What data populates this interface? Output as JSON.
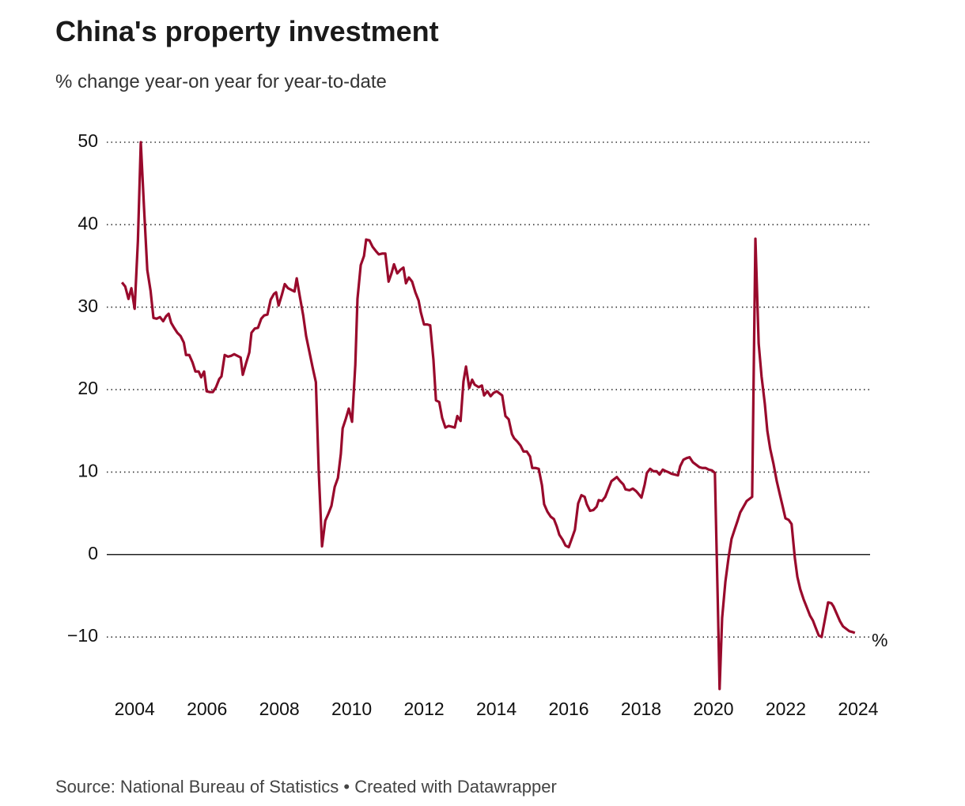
{
  "chart_data": {
    "type": "line",
    "title": "China's property investment",
    "subtitle": "% change year-on year for year-to-date",
    "source": "Source: National Bureau of Statistics • Created with Datawrapper",
    "unit": "%",
    "x": [
      2003.65,
      2003.74,
      2003.83,
      2003.91,
      2004.0,
      2004.09,
      2004.17,
      2004.26,
      2004.35,
      2004.44,
      2004.52,
      2004.61,
      2004.7,
      2004.79,
      2004.87,
      2004.94,
      2005.01,
      2005.09,
      2005.18,
      2005.27,
      2005.36,
      2005.42,
      2005.51,
      2005.6,
      2005.68,
      2005.77,
      2005.84,
      2005.92,
      2005.99,
      2006.08,
      2006.16,
      2006.25,
      2006.34,
      2006.4,
      2006.49,
      2006.58,
      2006.67,
      2006.75,
      2006.84,
      2006.93,
      2006.99,
      2007.08,
      2007.17,
      2007.23,
      2007.32,
      2007.41,
      2007.5,
      2007.58,
      2007.67,
      2007.76,
      2007.85,
      2007.91,
      2007.98,
      2008.07,
      2008.15,
      2008.24,
      2008.33,
      2008.42,
      2008.48,
      2008.57,
      2008.66,
      2008.74,
      2008.83,
      2008.92,
      2009.01,
      2009.09,
      2009.18,
      2009.27,
      2009.36,
      2009.44,
      2009.53,
      2009.62,
      2009.7,
      2009.75,
      2009.84,
      2009.92,
      2010.01,
      2010.1,
      2010.16,
      2010.25,
      2010.34,
      2010.4,
      2010.49,
      2010.58,
      2010.67,
      2010.75,
      2010.84,
      2010.93,
      2011.02,
      2011.1,
      2011.17,
      2011.26,
      2011.34,
      2011.43,
      2011.5,
      2011.58,
      2011.67,
      2011.76,
      2011.85,
      2011.91,
      2012.0,
      2012.09,
      2012.17,
      2012.26,
      2012.33,
      2012.42,
      2012.5,
      2012.59,
      2012.68,
      2012.77,
      2012.85,
      2012.92,
      2013.01,
      2013.09,
      2013.16,
      2013.25,
      2013.33,
      2013.4,
      2013.51,
      2013.6,
      2013.66,
      2013.75,
      2013.84,
      2013.92,
      2014.01,
      2014.1,
      2014.16,
      2014.25,
      2014.34,
      2014.43,
      2014.49,
      2014.58,
      2014.67,
      2014.75,
      2014.84,
      2014.93,
      2014.99,
      2015.08,
      2015.17,
      2015.26,
      2015.32,
      2015.41,
      2015.5,
      2015.59,
      2015.67,
      2015.74,
      2015.83,
      2015.91,
      2016.0,
      2016.09,
      2016.17,
      2016.26,
      2016.35,
      2016.44,
      2016.5,
      2016.59,
      2016.68,
      2016.77,
      2016.83,
      2016.92,
      2017.01,
      2017.09,
      2017.18,
      2017.27,
      2017.33,
      2017.42,
      2017.51,
      2017.57,
      2017.68,
      2017.77,
      2017.86,
      2017.92,
      2018.01,
      2018.1,
      2018.16,
      2018.25,
      2018.34,
      2018.43,
      2018.51,
      2018.6,
      2018.69,
      2018.75,
      2018.84,
      2018.93,
      2019.02,
      2019.08,
      2019.17,
      2019.26,
      2019.34,
      2019.43,
      2019.52,
      2019.61,
      2019.69,
      2019.78,
      2019.87,
      2019.96,
      2020.04,
      2020.13,
      2020.17,
      2020.24,
      2020.33,
      2020.42,
      2020.5,
      2020.59,
      2020.66,
      2020.74,
      2020.83,
      2020.92,
      2021.01,
      2021.07,
      2021.16,
      2021.25,
      2021.33,
      2021.42,
      2021.49,
      2021.57,
      2021.66,
      2021.75,
      2021.84,
      2021.9,
      2021.99,
      2022.08,
      2022.16,
      2022.25,
      2022.32,
      2022.4,
      2022.49,
      2022.58,
      2022.67,
      2022.75,
      2022.82,
      2022.91,
      2022.99,
      2023.08,
      2023.17,
      2023.26,
      2023.32,
      2023.41,
      2023.5,
      2023.58,
      2023.67,
      2023.76,
      2023.85,
      2023.91
    ],
    "series": [
      {
        "name": "Property investment",
        "color": "#990a2c",
        "values": [
          33.0,
          32.5,
          31.0,
          32.3,
          29.8,
          38,
          50,
          42,
          34.5,
          32,
          28.7,
          28.6,
          28.8,
          28.3,
          28.9,
          29.2,
          28.1,
          27.5,
          26.9,
          26.5,
          25.7,
          24.2,
          24.2,
          23.3,
          22.2,
          22.2,
          21.5,
          22.2,
          19.8,
          19.7,
          19.7,
          20.3,
          21.3,
          21.6,
          24.2,
          24.0,
          24.1,
          24.3,
          24.1,
          23.9,
          21.8,
          23.2,
          24.5,
          26.9,
          27.4,
          27.5,
          28.6,
          29.0,
          29.1,
          30.9,
          31.6,
          31.8,
          30.2,
          31.5,
          32.8,
          32.3,
          32.1,
          31.9,
          33.5,
          31.2,
          29.0,
          26.5,
          24.6,
          22.7,
          20.9,
          10,
          1.0,
          4.1,
          5.0,
          5.9,
          8.2,
          9.3,
          12.2,
          15.3,
          16.5,
          17.7,
          16.1,
          23,
          31,
          35.1,
          36.2,
          38.2,
          38.1,
          37.3,
          36.8,
          36.4,
          36.5,
          36.5,
          33.1,
          34.1,
          35.2,
          34.1,
          34.5,
          34.8,
          32.9,
          33.6,
          33.1,
          31.8,
          30.8,
          29.4,
          27.9,
          27.9,
          27.8,
          23.6,
          18.7,
          18.5,
          16.6,
          15.4,
          15.6,
          15.5,
          15.4,
          16.8,
          16.2,
          21,
          22.8,
          20.2,
          21.2,
          20.6,
          20.3,
          20.5,
          19.3,
          19.8,
          19.2,
          19.6,
          19.8,
          19.5,
          19.3,
          16.8,
          16.4,
          14.6,
          14.1,
          13.7,
          13.2,
          12.5,
          12.5,
          11.9,
          10.5,
          10.5,
          10.4,
          8.4,
          6.1,
          5.2,
          4.6,
          4.3,
          3.4,
          2.4,
          1.8,
          1.1,
          0.9,
          2.0,
          3.0,
          6.2,
          7.2,
          7.0,
          6.1,
          5.3,
          5.4,
          5.8,
          6.6,
          6.5,
          7.0,
          7.9,
          8.9,
          9.2,
          9.4,
          8.9,
          8.5,
          7.9,
          7.8,
          8.0,
          7.7,
          7.4,
          6.9,
          8.5,
          9.9,
          10.4,
          10.1,
          10.1,
          9.7,
          10.3,
          10.1,
          10.0,
          9.8,
          9.7,
          9.6,
          10.7,
          11.5,
          11.7,
          11.8,
          11.2,
          10.9,
          10.6,
          10.5,
          10.5,
          10.3,
          10.2,
          9.9,
          -7.7,
          -16.3,
          -7.7,
          -3.3,
          -0.3,
          1.9,
          3.1,
          4.0,
          5.1,
          5.8,
          6.5,
          6.8,
          7.0,
          38.3,
          25.6,
          21.6,
          18.3,
          15.0,
          12.8,
          11.0,
          8.9,
          7.2,
          6.1,
          4.4,
          4.2,
          3.7,
          -0.4,
          -2.7,
          -4.2,
          -5.4,
          -6.4,
          -7.4,
          -8.0,
          -8.8,
          -9.8,
          -10.0,
          -7.9,
          -5.8,
          -5.9,
          -6.3,
          -7.2,
          -8.1,
          -8.7,
          -9.0,
          -9.3,
          -9.4,
          -9.5
        ]
      }
    ],
    "xlim": [
      2003.23,
      2024.33
    ],
    "xticks": [
      2004,
      2006,
      2008,
      2010,
      2012,
      2014,
      2016,
      2018,
      2020,
      2022,
      2024
    ],
    "ylim": [
      -16.5,
      50
    ],
    "yticks": [
      {
        "value": -10,
        "label": "−10"
      },
      0,
      10,
      20,
      30,
      40,
      50
    ],
    "grid": true
  }
}
